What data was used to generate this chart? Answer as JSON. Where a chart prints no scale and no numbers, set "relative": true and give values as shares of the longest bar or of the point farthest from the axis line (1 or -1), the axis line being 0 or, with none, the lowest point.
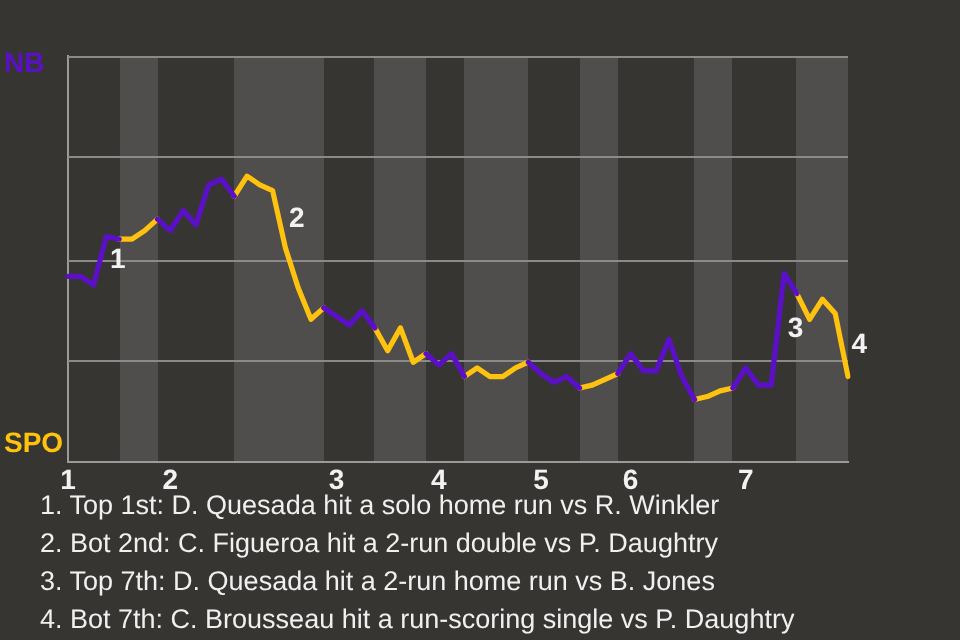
{
  "chart_data": {
    "type": "line",
    "relative": true,
    "legend": "left",
    "marker": "none",
    "line_style": "solid",
    "categories": [
      "1",
      null,
      null,
      null,
      null,
      null,
      null,
      null,
      "2",
      null,
      null,
      null,
      null,
      null,
      null,
      null,
      null,
      null,
      null,
      null,
      null,
      "3",
      null,
      null,
      null,
      null,
      null,
      null,
      null,
      "4",
      null,
      null,
      null,
      null,
      null,
      null,
      null,
      "5",
      null,
      null,
      null,
      null,
      null,
      null,
      "6",
      null,
      null,
      null,
      null,
      null,
      null,
      null,
      null,
      "7",
      null,
      null,
      null,
      null,
      null,
      null,
      null,
      null
    ],
    "series": [
      {
        "name": "NB",
        "color": "#5b10c8",
        "values": [
          0.65,
          0.65,
          0.62,
          0.79,
          0.78,
          null,
          null,
          0.85,
          0.81,
          0.88,
          0.83,
          0.97,
          0.99,
          0.93,
          null,
          null,
          null,
          null,
          null,
          null,
          0.54,
          0.51,
          0.48,
          0.53,
          0.47,
          null,
          null,
          null,
          0.38,
          0.34,
          0.38,
          0.3,
          null,
          null,
          null,
          null,
          0.35,
          0.31,
          0.28,
          0.3,
          0.26,
          null,
          null,
          0.31,
          0.38,
          0.32,
          0.32,
          0.43,
          0.3,
          0.22,
          null,
          null,
          0.26,
          0.33,
          0.27,
          0.27,
          0.66,
          0.59,
          null,
          null,
          null,
          null
        ]
      },
      {
        "name": "SPO",
        "color": "#ffc20e",
        "values": [
          null,
          null,
          null,
          null,
          0.78,
          0.78,
          0.81,
          0.85,
          null,
          null,
          null,
          null,
          null,
          0.93,
          1.0,
          0.97,
          0.95,
          0.75,
          0.61,
          0.5,
          0.54,
          null,
          null,
          null,
          0.47,
          0.39,
          0.47,
          0.35,
          0.38,
          null,
          null,
          0.3,
          0.33,
          0.3,
          0.3,
          0.33,
          0.35,
          null,
          null,
          null,
          0.26,
          0.27,
          0.29,
          0.31,
          null,
          null,
          null,
          null,
          null,
          0.22,
          0.23,
          0.25,
          0.26,
          null,
          null,
          null,
          null,
          0.59,
          0.5,
          0.57,
          0.52,
          0.3
        ]
      }
    ],
    "ref_lines": [
      {
        "axis": "y",
        "value": 0.36,
        "color": "#8a8a88"
      },
      {
        "axis": "y",
        "value": 0.71,
        "color": "#8a8a88"
      },
      {
        "axis": "y",
        "value": 1.07,
        "color": "#8a8a88"
      },
      {
        "axis": "y",
        "value": 1.42,
        "color": "#8a8a88"
      }
    ],
    "annotations": [
      "1",
      "2",
      "3",
      "4",
      "1. Top 1st: D. Quesada hit a solo home run vs R. Winkler",
      "2. Bot 2nd: C. Figueroa hit a 2-run double vs P. Daughtry",
      "3. Top 7th: D. Quesada hit a 2-run home run vs B. Jones",
      "4. Bot 7th: C. Brousseau hit a run-scoring single vs P. Daughtry"
    ]
  }
}
